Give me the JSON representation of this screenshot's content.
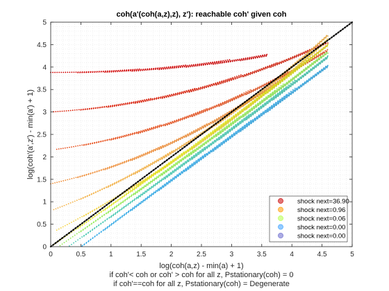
{
  "chart_data": {
    "type": "scatter",
    "title": "coh(a'(coh(a,z),z), z'): reachable coh' given coh",
    "xlabel": "log(coh(a,z) - min(a) + 1)",
    "xlabel_note1": "if coh'< coh or coh' > coh for all z, Pstationary(coh) = 0",
    "xlabel_note2": "if coh'==coh for all z, Pstationary(coh) = Degenerate",
    "ylabel": "log(coh'(a',z') - min(a') + 1)",
    "xlim": [
      0,
      5
    ],
    "ylim": [
      0,
      5
    ],
    "xticks": [
      "0",
      "0.5",
      "1",
      "1.5",
      "2",
      "2.5",
      "3",
      "3.5",
      "4",
      "4.5",
      "5"
    ],
    "yticks": [
      "0",
      "0.5",
      "1",
      "1.5",
      "2",
      "2.5",
      "3",
      "3.5",
      "4",
      "4.5",
      "5"
    ],
    "grid": "minor dotted",
    "legend_location": "bottom-right",
    "reference_line": {
      "x": [
        0,
        5
      ],
      "y": [
        0,
        5
      ],
      "style": "dotted",
      "color": "#000000"
    },
    "series": [
      {
        "name": "shock next=36.90",
        "color": "#c80000",
        "base": 3.88,
        "slope": 0.0,
        "curv": 0.035
      },
      {
        "name": "shock next=0.96",
        "color": "#ff9a00",
        "base": 1.4,
        "slope": 0.3,
        "curv": 0.085
      },
      {
        "name": "shock next=0.06",
        "color": "#b4ff4a",
        "base": 0.0,
        "slope": 0.75,
        "curv": 0.04
      },
      {
        "name": "shock next=0.00",
        "color": "#3aa0ff",
        "base": -0.25,
        "slope": 0.75,
        "curv": 0.04
      },
      {
        "name": "shock next=0.00",
        "color": "#6666cc",
        "base": -0.25,
        "slope": 0.75,
        "curv": 0.04
      }
    ],
    "families": [
      {
        "base": 3.88,
        "slope": 0.0,
        "curv": 0.035,
        "x_end": 3.6,
        "color": "#d40000"
      },
      {
        "base": 3.0,
        "slope": 0.08,
        "curv": 0.06,
        "x_end": 4.6,
        "color": "#dc1a00"
      },
      {
        "base": 2.15,
        "slope": 0.18,
        "curv": 0.07,
        "x_end": 4.6,
        "color": "#e84a14"
      },
      {
        "base": 1.4,
        "slope": 0.3,
        "curv": 0.085,
        "x_end": 4.6,
        "color": "#f08a30"
      },
      {
        "base": 0.8,
        "slope": 0.5,
        "curv": 0.08,
        "x_end": 4.6,
        "color": "#f5b040"
      },
      {
        "base": 0.3,
        "slope": 0.68,
        "curv": 0.06,
        "x_end": 4.6,
        "color": "#f5d23c"
      },
      {
        "base": 0.0,
        "slope": 0.92,
        "curv": 0.016,
        "x_end": 4.6,
        "color": "#e6e81e"
      },
      {
        "base": -0.12,
        "slope": 0.93,
        "curv": 0.012,
        "x_end": 4.6,
        "color": "#90ee50"
      },
      {
        "base": -0.28,
        "slope": 0.95,
        "curv": 0.01,
        "x_end": 4.6,
        "color": "#40c8b0"
      },
      {
        "base": -0.5,
        "slope": 1.0,
        "curv": 0.0,
        "x_end": 4.6,
        "color": "#2da8e8"
      }
    ]
  }
}
